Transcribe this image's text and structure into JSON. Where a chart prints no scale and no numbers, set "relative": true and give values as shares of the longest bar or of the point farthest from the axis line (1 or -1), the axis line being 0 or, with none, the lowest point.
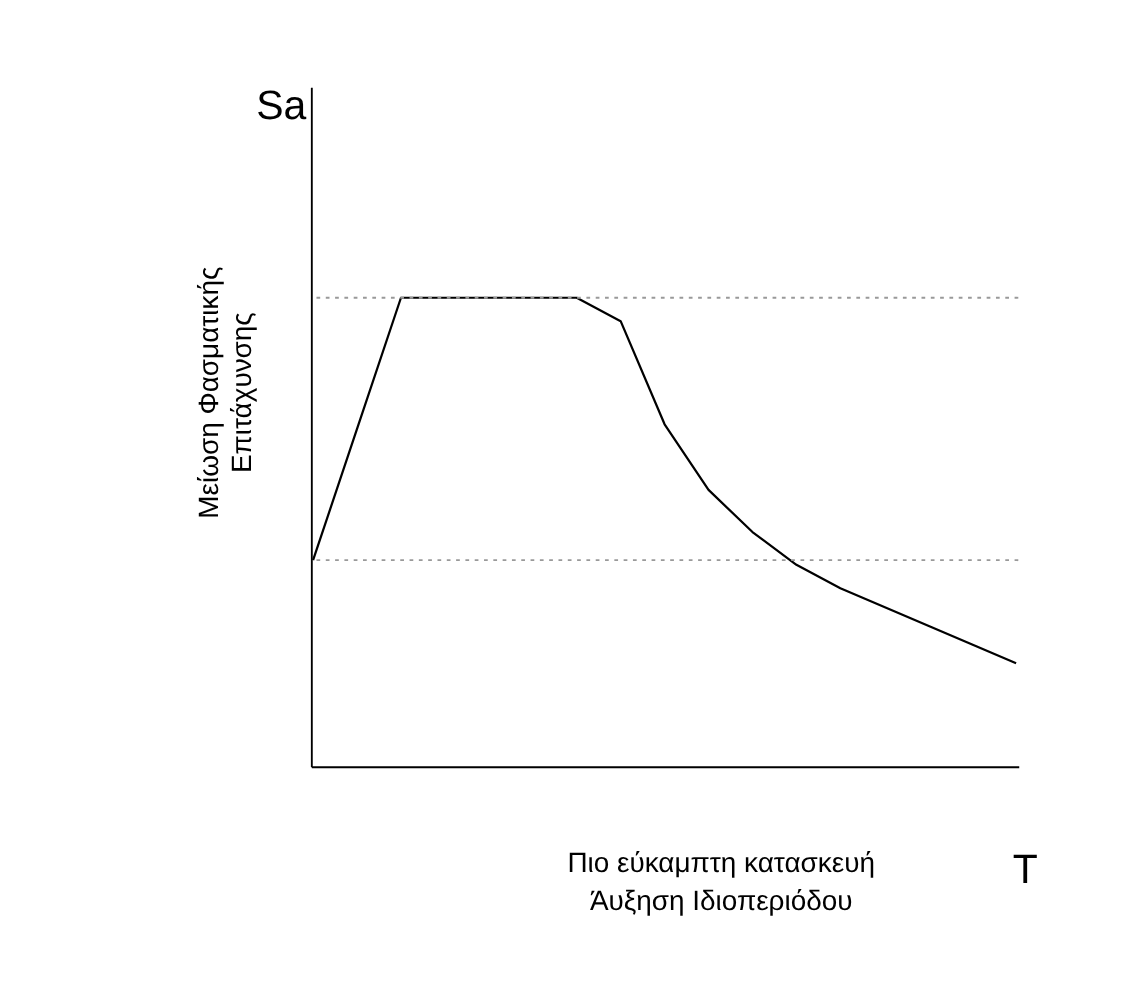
{
  "chart_data": {
    "type": "line",
    "relative": true,
    "xlabel": "T",
    "ylabel": "Sa",
    "categories": [
      null,
      null,
      null,
      null,
      null,
      null,
      null,
      null,
      null,
      null,
      null,
      null,
      null,
      null,
      null,
      null,
      null
    ],
    "series": [
      {
        "color": "#000000",
        "values": [
          0.44,
          0.72,
          1.0,
          1.0,
          1.0,
          1.0,
          1.0,
          0.95,
          0.73,
          0.59,
          0.5,
          0.43,
          0.38,
          0.34,
          0.3,
          0.26,
          0.22
        ]
      }
    ],
    "ref_lines": [
      {
        "axis": "y",
        "value": 1.0,
        "color": "#999999",
        "line_style": "dotted"
      },
      {
        "axis": "y",
        "value": 0.44,
        "color": "#999999",
        "line_style": "dotted"
      }
    ],
    "annotations": [
      "Μείωση Φασματικής\nΕπιτάχυνσης",
      "Πιο εύκαμπτη κατασκευή\nΆυξηση Ιδιοπεριόδου"
    ],
    "marker": "none",
    "line_style": "solid",
    "grid": false,
    "tick_labels": false
  }
}
